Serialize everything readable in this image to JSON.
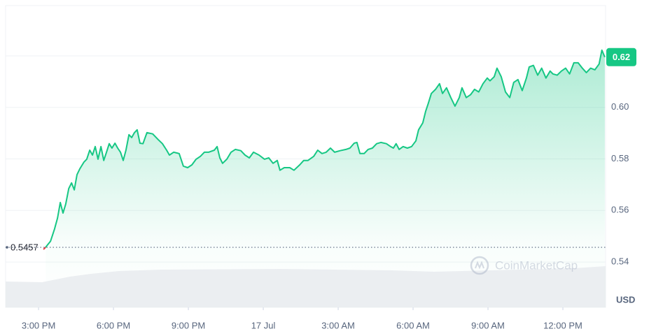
{
  "chart_data": {
    "type": "area",
    "currency": "USD",
    "watermark": "CoinMarketCap",
    "reference": 0.5457,
    "current_price_label": "0.62",
    "color": "#16c784",
    "grid": true,
    "xlim": [
      13.68,
      37.71
    ],
    "ylim": [
      0.5224,
      0.6395
    ],
    "xticks": [
      {
        "value": 15,
        "label": "3:00 PM"
      },
      {
        "value": 18,
        "label": "6:00 PM"
      },
      {
        "value": 21,
        "label": "9:00 PM"
      },
      {
        "value": 24,
        "label": "17 Jul"
      },
      {
        "value": 27,
        "label": "3:00 AM"
      },
      {
        "value": 30,
        "label": "6:00 AM"
      },
      {
        "value": 33,
        "label": "9:00 AM"
      },
      {
        "value": 36,
        "label": "12:00 PM"
      }
    ],
    "yticks": [
      0.54,
      0.56,
      0.58,
      {
        "value": 0.6,
        "label": "0.60"
      },
      0.62
    ],
    "x": [
      15.28,
      15.48,
      15.64,
      15.76,
      15.87,
      15.98,
      16.09,
      16.21,
      16.32,
      16.43,
      16.54,
      16.65,
      16.82,
      16.93,
      17.05,
      17.16,
      17.27,
      17.38,
      17.5,
      17.61,
      17.72,
      17.83,
      17.94,
      18.06,
      18.17,
      18.28,
      18.39,
      18.5,
      18.62,
      18.73,
      18.84,
      18.95,
      19.06,
      19.18,
      19.34,
      19.57,
      19.79,
      19.96,
      20.13,
      20.24,
      20.41,
      20.63,
      20.8,
      20.97,
      21.14,
      21.31,
      21.48,
      21.64,
      21.81,
      22.04,
      22.15,
      22.26,
      22.37,
      22.54,
      22.71,
      22.88,
      23.1,
      23.27,
      23.44,
      23.61,
      23.83,
      24.05,
      24.22,
      24.39,
      24.56,
      24.67,
      24.84,
      25.06,
      25.23,
      25.46,
      25.62,
      25.79,
      26.02,
      26.18,
      26.35,
      26.52,
      26.69,
      26.86,
      27.08,
      27.31,
      27.47,
      27.64,
      27.75,
      27.87,
      28.04,
      28.2,
      28.37,
      28.54,
      28.71,
      28.93,
      29.1,
      29.21,
      29.32,
      29.44,
      29.6,
      29.77,
      29.94,
      30.11,
      30.22,
      30.39,
      30.5,
      30.61,
      30.73,
      30.9,
      31.06,
      31.18,
      31.34,
      31.51,
      31.68,
      31.85,
      31.96,
      32.13,
      32.3,
      32.46,
      32.63,
      32.8,
      32.97,
      33.08,
      33.25,
      33.36,
      33.53,
      33.7,
      33.87,
      34.03,
      34.2,
      34.37,
      34.54,
      34.65,
      34.82,
      34.99,
      35.15,
      35.32,
      35.49,
      35.6,
      35.77,
      35.94,
      36.11,
      36.27,
      36.44,
      36.61,
      36.78,
      36.94,
      37.11,
      37.28,
      37.45,
      37.56,
      37.68
    ],
    "series": [
      {
        "name": "Price",
        "color": "#16c784",
        "values": [
          0.5457,
          0.5481,
          0.5528,
          0.5571,
          0.5631,
          0.559,
          0.5625,
          0.5685,
          0.5707,
          0.568,
          0.5739,
          0.5761,
          0.5788,
          0.5799,
          0.5834,
          0.5815,
          0.5848,
          0.5799,
          0.5848,
          0.5794,
          0.5826,
          0.5859,
          0.5842,
          0.5861,
          0.5842,
          0.5826,
          0.5794,
          0.5834,
          0.5894,
          0.5883,
          0.5902,
          0.5913,
          0.5861,
          0.5859,
          0.5902,
          0.5897,
          0.5875,
          0.5859,
          0.5834,
          0.5815,
          0.5826,
          0.5821,
          0.5772,
          0.5766,
          0.5777,
          0.5799,
          0.581,
          0.5826,
          0.5826,
          0.5834,
          0.5848,
          0.5804,
          0.5783,
          0.5799,
          0.5826,
          0.5837,
          0.5832,
          0.5815,
          0.5804,
          0.5826,
          0.5815,
          0.5799,
          0.5804,
          0.5783,
          0.5794,
          0.5756,
          0.5766,
          0.5766,
          0.5756,
          0.5777,
          0.5794,
          0.5794,
          0.581,
          0.5834,
          0.5821,
          0.5826,
          0.5842,
          0.5826,
          0.5832,
          0.5837,
          0.5842,
          0.5861,
          0.5864,
          0.5821,
          0.5821,
          0.5837,
          0.5842,
          0.5859,
          0.5864,
          0.5859,
          0.5848,
          0.5842,
          0.5859,
          0.5837,
          0.5848,
          0.5842,
          0.5848,
          0.587,
          0.5913,
          0.594,
          0.5984,
          0.6016,
          0.6054,
          0.607,
          0.6092,
          0.6054,
          0.6076,
          0.6038,
          0.6005,
          0.6038,
          0.6076,
          0.6038,
          0.6049,
          0.607,
          0.606,
          0.6092,
          0.6114,
          0.6103,
          0.6119,
          0.6152,
          0.6119,
          0.606,
          0.6038,
          0.6097,
          0.6108,
          0.6065,
          0.6114,
          0.6157,
          0.6163,
          0.6125,
          0.6152,
          0.6114,
          0.6141,
          0.613,
          0.6125,
          0.6141,
          0.6152,
          0.613,
          0.6173,
          0.6173,
          0.6152,
          0.6135,
          0.6152,
          0.6146,
          0.6168,
          0.6222,
          0.6195
        ]
      }
    ]
  }
}
